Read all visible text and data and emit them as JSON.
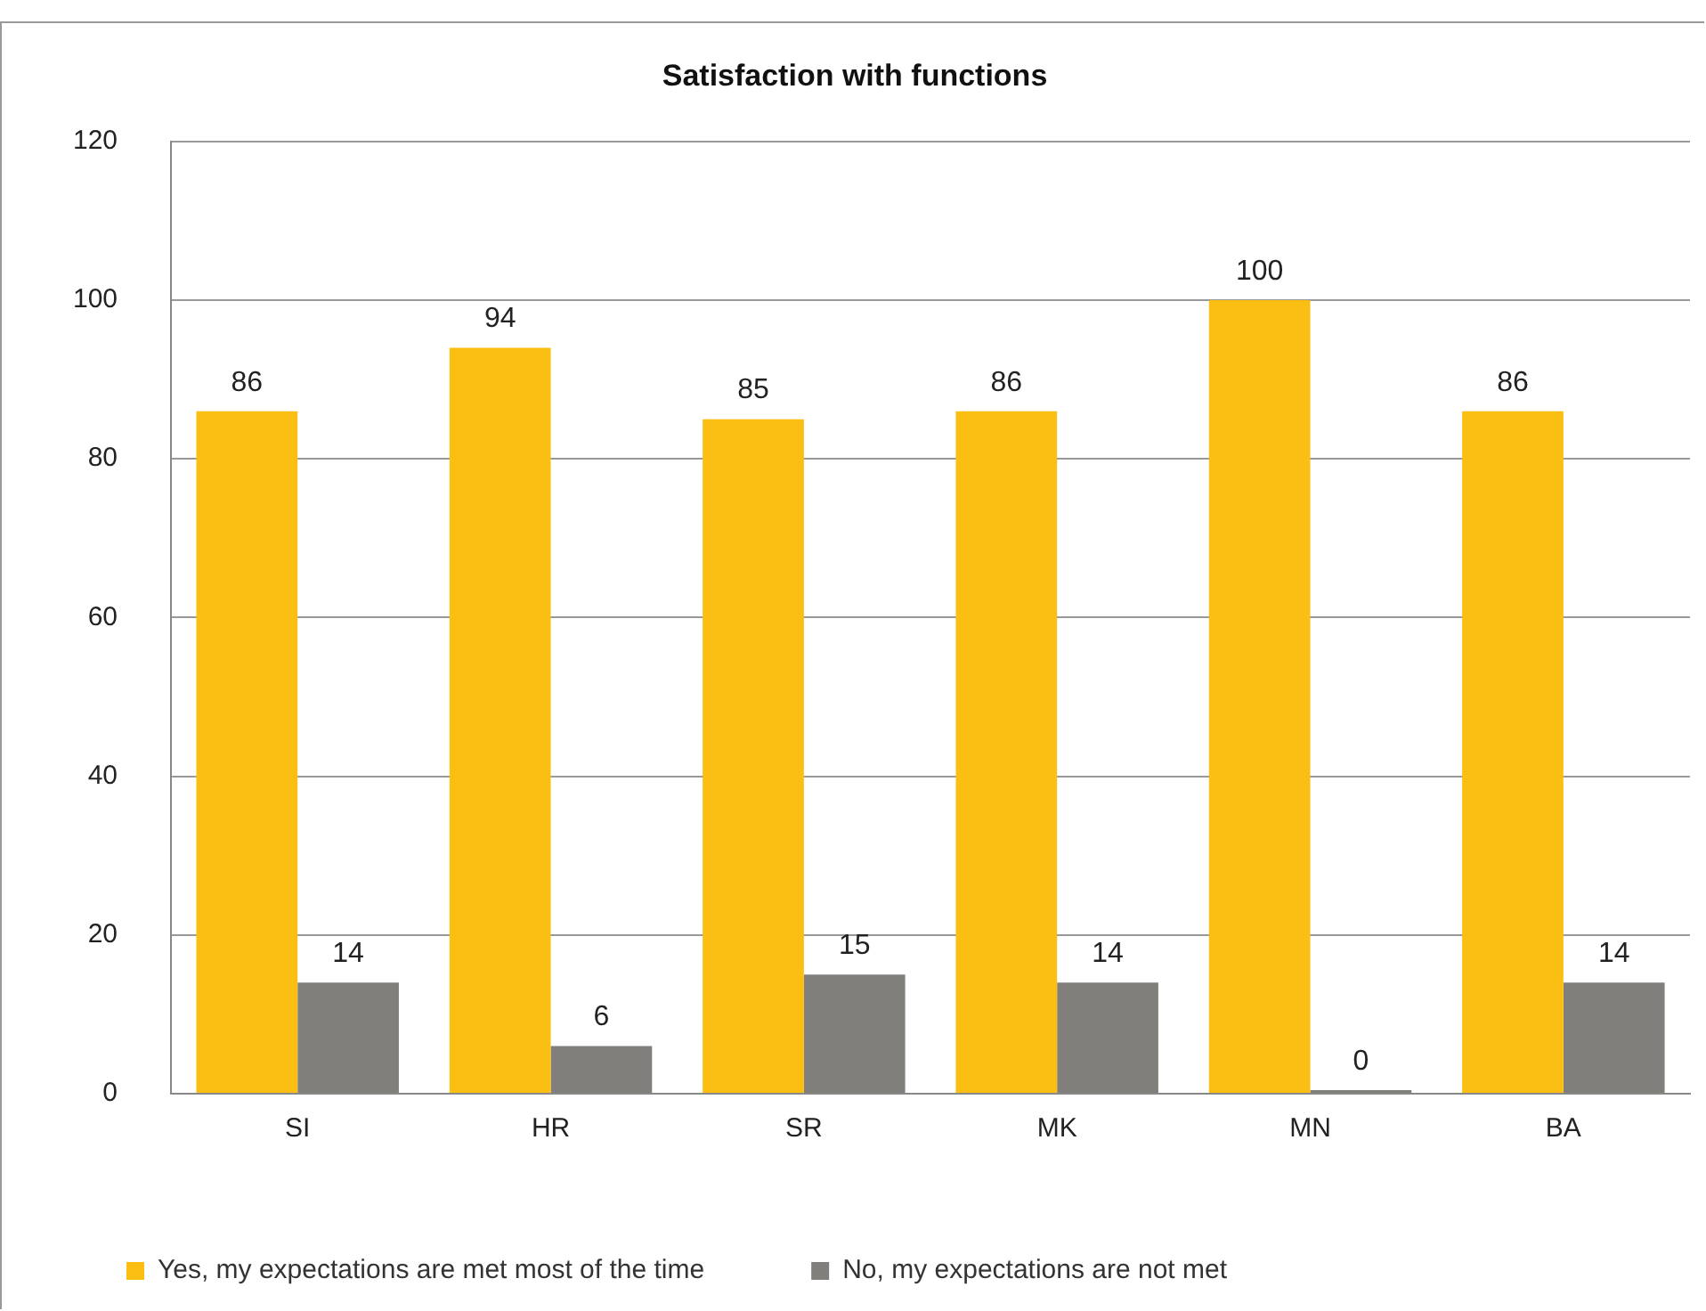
{
  "chart_data": {
    "type": "bar",
    "title": "Satisfaction with functions",
    "categories": [
      "SI",
      "HR",
      "SR",
      "MK",
      "MN",
      "BA"
    ],
    "series": [
      {
        "name": "Yes, my expectations are met most of the time",
        "color": "#fbbf13",
        "values": [
          86,
          94,
          85,
          86,
          100,
          86
        ]
      },
      {
        "name": "No, my expectations are not met",
        "color": "#807f7b",
        "values": [
          14,
          6,
          15,
          14,
          0,
          14
        ]
      }
    ],
    "ylim": [
      0,
      120
    ],
    "yticks": [
      0,
      20,
      40,
      60,
      80,
      100,
      120
    ],
    "grid": "y",
    "legend": "bottom",
    "data_labels": true
  }
}
